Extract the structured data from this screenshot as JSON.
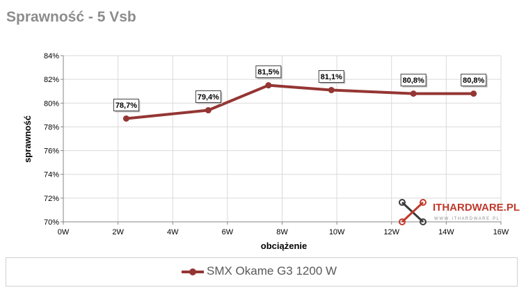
{
  "chart_data": {
    "type": "line",
    "title": "Sprawność - 5 Vsb",
    "xlabel": "obciążenie",
    "ylabel": "sprawność",
    "x_ticks": [
      "0W",
      "2W",
      "4W",
      "6W",
      "8W",
      "10W",
      "12W",
      "14W",
      "16W"
    ],
    "xlim": [
      0,
      16
    ],
    "y_ticks": [
      "70%",
      "72%",
      "74%",
      "76%",
      "78%",
      "80%",
      "82%",
      "84%"
    ],
    "ylim": [
      70,
      84
    ],
    "grid": true,
    "legend_position": "bottom",
    "series": [
      {
        "name": "SMX Okame G3 1200 W",
        "color": "#943634",
        "x": [
          2.3,
          5.3,
          7.5,
          9.8,
          12.8,
          15.0
        ],
        "values": [
          78.7,
          79.4,
          81.5,
          81.1,
          80.8,
          80.8
        ],
        "labels": [
          "78,7%",
          "79,4%",
          "81,5%",
          "81,1%",
          "80,8%",
          "80,8%"
        ]
      }
    ]
  },
  "watermark": {
    "brand": "ITHARDWARE.PL",
    "subtext": "W W W . I T H A R D W A R E . P L",
    "icon": "crossed-tools-icon"
  }
}
